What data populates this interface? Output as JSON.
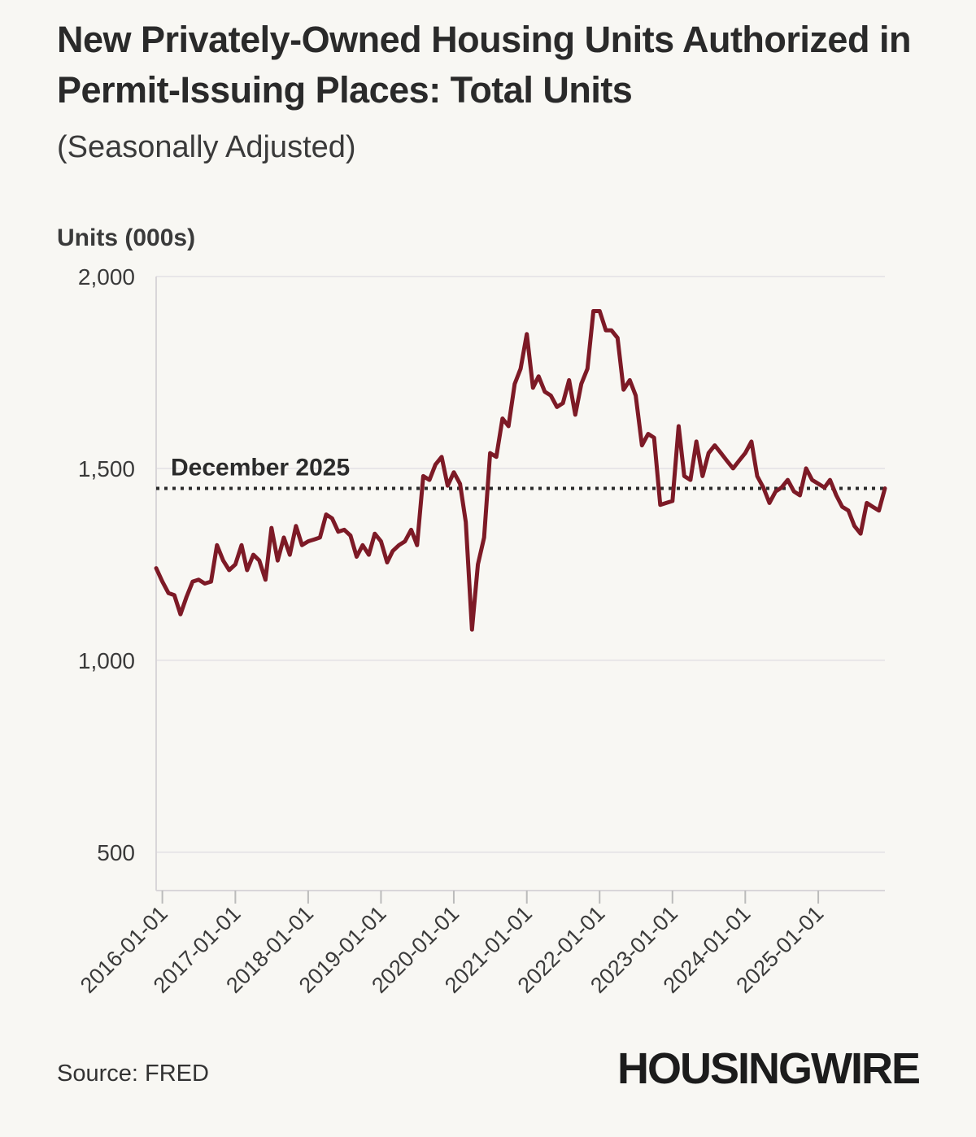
{
  "header": {
    "title": "New Privately-Owned Housing Units Authorized in Permit-Issuing Places: Total Units",
    "subtitle": "(Seasonally Adjusted)"
  },
  "footer": {
    "source": "Source: FRED",
    "logo": "HOUSINGWIRE"
  },
  "colors": {
    "line": "#7d1a26",
    "reference": "#2b2b2b",
    "grid": "#e8e6e8",
    "axis": "#d9d6d9",
    "background": "#f8f7f3"
  },
  "chart_data": {
    "type": "line",
    "title": "New Privately-Owned Housing Units Authorized in Permit-Issuing Places: Total Units",
    "subtitle": "(Seasonally Adjusted)",
    "ylabel": "Units (000s)",
    "xlabel": "",
    "ylim": [
      400,
      2000
    ],
    "yticks": [
      500,
      1000,
      1500,
      2000
    ],
    "ytick_labels": [
      "500",
      "1,000",
      "1,500",
      "2,000"
    ],
    "xlim": [
      "2015-12-01",
      "2025-12-01"
    ],
    "xticks": [
      "2016-01-01",
      "2017-01-01",
      "2018-01-01",
      "2019-01-01",
      "2020-01-01",
      "2021-01-01",
      "2022-01-01",
      "2023-01-01",
      "2024-01-01",
      "2025-01-01"
    ],
    "grid": true,
    "reference_line": {
      "value": 1448,
      "label": "December 2025"
    },
    "series": [
      {
        "x": [
          "2015-12-01",
          "2016-01-01",
          "2016-02-01",
          "2016-03-01",
          "2016-04-01",
          "2016-05-01",
          "2016-06-01",
          "2016-07-01",
          "2016-08-01",
          "2016-09-01",
          "2016-10-01",
          "2016-11-01",
          "2016-12-01",
          "2017-01-01",
          "2017-02-01",
          "2017-03-01",
          "2017-04-01",
          "2017-05-01",
          "2017-06-01",
          "2017-07-01",
          "2017-08-01",
          "2017-09-01",
          "2017-10-01",
          "2017-11-01",
          "2017-12-01",
          "2018-01-01",
          "2018-02-01",
          "2018-03-01",
          "2018-04-01",
          "2018-05-01",
          "2018-06-01",
          "2018-07-01",
          "2018-08-01",
          "2018-09-01",
          "2018-10-01",
          "2018-11-01",
          "2018-12-01",
          "2019-01-01",
          "2019-02-01",
          "2019-03-01",
          "2019-04-01",
          "2019-05-01",
          "2019-06-01",
          "2019-07-01",
          "2019-08-01",
          "2019-09-01",
          "2019-10-01",
          "2019-11-01",
          "2019-12-01",
          "2020-01-01",
          "2020-02-01",
          "2020-03-01",
          "2020-04-01",
          "2020-05-01",
          "2020-06-01",
          "2020-07-01",
          "2020-08-01",
          "2020-09-01",
          "2020-10-01",
          "2020-11-01",
          "2020-12-01",
          "2021-01-01",
          "2021-02-01",
          "2021-03-01",
          "2021-04-01",
          "2021-05-01",
          "2021-06-01",
          "2021-07-01",
          "2021-08-01",
          "2021-09-01",
          "2021-10-01",
          "2021-11-01",
          "2021-12-01",
          "2022-01-01",
          "2022-02-01",
          "2022-03-01",
          "2022-04-01",
          "2022-05-01",
          "2022-06-01",
          "2022-07-01",
          "2022-08-01",
          "2022-09-01",
          "2022-10-01",
          "2022-11-01",
          "2022-12-01",
          "2023-01-01",
          "2023-02-01",
          "2023-03-01",
          "2023-04-01",
          "2023-05-01",
          "2023-06-01",
          "2023-07-01",
          "2023-08-01",
          "2023-09-01",
          "2023-10-01",
          "2023-11-01",
          "2023-12-01",
          "2024-01-01",
          "2024-02-01",
          "2024-03-01",
          "2024-04-01",
          "2024-05-01",
          "2024-06-01",
          "2024-07-01",
          "2024-08-01",
          "2024-09-01",
          "2024-10-01",
          "2024-11-01",
          "2024-12-01",
          "2025-01-01",
          "2025-02-01",
          "2025-03-01",
          "2025-04-01",
          "2025-05-01",
          "2025-06-01",
          "2025-07-01",
          "2025-08-01",
          "2025-09-01",
          "2025-10-01",
          "2025-11-01",
          "2025-12-01"
        ],
        "y": [
          1240,
          1205,
          1175,
          1170,
          1120,
          1165,
          1205,
          1210,
          1200,
          1205,
          1300,
          1260,
          1235,
          1250,
          1300,
          1235,
          1275,
          1260,
          1210,
          1345,
          1260,
          1320,
          1275,
          1350,
          1300,
          1310,
          1315,
          1320,
          1380,
          1370,
          1335,
          1340,
          1325,
          1270,
          1300,
          1275,
          1330,
          1310,
          1255,
          1285,
          1300,
          1310,
          1340,
          1300,
          1480,
          1470,
          1510,
          1530,
          1455,
          1490,
          1460,
          1360,
          1080,
          1250,
          1320,
          1540,
          1530,
          1630,
          1610,
          1720,
          1760,
          1850,
          1710,
          1740,
          1700,
          1690,
          1660,
          1670,
          1730,
          1640,
          1720,
          1760,
          1910,
          1910,
          1860,
          1860,
          1840,
          1705,
          1730,
          1690,
          1560,
          1590,
          1580,
          1405,
          1410,
          1415,
          1610,
          1480,
          1470,
          1570,
          1480,
          1540,
          1560,
          1540,
          1520,
          1500,
          1520,
          1540,
          1570,
          1480,
          1450,
          1410,
          1440,
          1450,
          1470,
          1440,
          1430,
          1500,
          1470,
          1460,
          1450,
          1470,
          1430,
          1400,
          1390,
          1350,
          1330,
          1410,
          1400,
          1390,
          1448
        ]
      }
    ]
  }
}
